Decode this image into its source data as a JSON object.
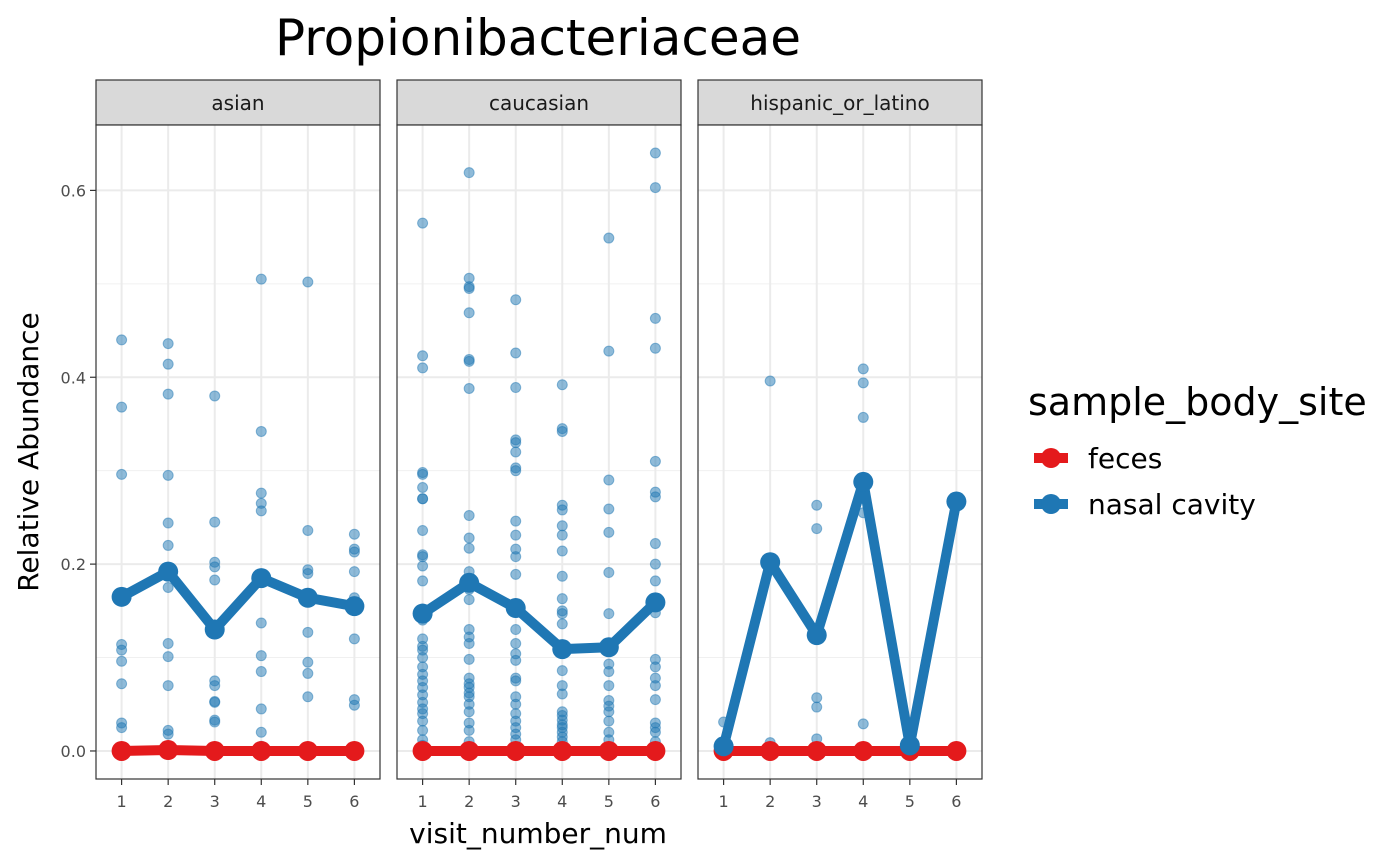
{
  "chart_data": {
    "type": "line",
    "title": "Propionibacteriaceae",
    "xlabel": "visit_number_num",
    "ylabel": "Relative Abundance",
    "x_ticks": [
      1,
      2,
      3,
      4,
      5,
      6
    ],
    "y_ticks": [
      0.0,
      0.2,
      0.4,
      0.6
    ],
    "y_tick_labels": [
      "0.0",
      "0.2",
      "0.4",
      "0.6"
    ],
    "ylim": [
      -0.03,
      0.67
    ],
    "xlim": [
      0.45,
      6.55
    ],
    "grid": true,
    "legend": {
      "title": "sample_body_site",
      "position": "right",
      "entries": [
        {
          "label": "feces",
          "color": "#E41A1C"
        },
        {
          "label": "nasal cavity",
          "color": "#1F77B4"
        }
      ]
    },
    "facets": [
      {
        "label": "asian",
        "series": [
          {
            "name": "feces",
            "color": "#E41A1C",
            "values": [
              0.0,
              0.001,
              0.0,
              0.0,
              0.0,
              0.0
            ]
          },
          {
            "name": "nasal cavity",
            "color": "#1F77B4",
            "values": [
              0.165,
              0.192,
              0.13,
              0.185,
              0.164,
              0.155
            ]
          }
        ],
        "points": [
          [
            1,
            0.44
          ],
          [
            1,
            0.368
          ],
          [
            1,
            0.296
          ],
          [
            1,
            0.114
          ],
          [
            1,
            0.108
          ],
          [
            1,
            0.096
          ],
          [
            1,
            0.072
          ],
          [
            1,
            0.03
          ],
          [
            1,
            0.025
          ],
          [
            1,
            0.004
          ],
          [
            1,
            0.002
          ],
          [
            2,
            0.436
          ],
          [
            2,
            0.414
          ],
          [
            2,
            0.382
          ],
          [
            2,
            0.295
          ],
          [
            2,
            0.244
          ],
          [
            2,
            0.22
          ],
          [
            2,
            0.175
          ],
          [
            2,
            0.115
          ],
          [
            2,
            0.101
          ],
          [
            2,
            0.07
          ],
          [
            2,
            0.022
          ],
          [
            2,
            0.018
          ],
          [
            2,
            0.005
          ],
          [
            3,
            0.38
          ],
          [
            3,
            0.245
          ],
          [
            3,
            0.202
          ],
          [
            3,
            0.197
          ],
          [
            3,
            0.183
          ],
          [
            3,
            0.075
          ],
          [
            3,
            0.07
          ],
          [
            3,
            0.053
          ],
          [
            3,
            0.052
          ],
          [
            3,
            0.033
          ],
          [
            3,
            0.031
          ],
          [
            3,
            0.003
          ],
          [
            4,
            0.505
          ],
          [
            4,
            0.342
          ],
          [
            4,
            0.276
          ],
          [
            4,
            0.265
          ],
          [
            4,
            0.257
          ],
          [
            4,
            0.137
          ],
          [
            4,
            0.102
          ],
          [
            4,
            0.085
          ],
          [
            4,
            0.045
          ],
          [
            4,
            0.02
          ],
          [
            4,
            0.005
          ],
          [
            5,
            0.502
          ],
          [
            5,
            0.236
          ],
          [
            5,
            0.194
          ],
          [
            5,
            0.19
          ],
          [
            5,
            0.127
          ],
          [
            5,
            0.095
          ],
          [
            5,
            0.083
          ],
          [
            5,
            0.058
          ],
          [
            5,
            0.003
          ],
          [
            6,
            0.232
          ],
          [
            6,
            0.216
          ],
          [
            6,
            0.213
          ],
          [
            6,
            0.192
          ],
          [
            6,
            0.164
          ],
          [
            6,
            0.12
          ],
          [
            6,
            0.055
          ],
          [
            6,
            0.049
          ],
          [
            6,
            0.003
          ]
        ]
      },
      {
        "label": "caucasian",
        "series": [
          {
            "name": "feces",
            "color": "#E41A1C",
            "values": [
              0.0,
              0.0,
              0.0,
              0.0,
              0.0,
              0.0
            ]
          },
          {
            "name": "nasal cavity",
            "color": "#1F77B4",
            "values": [
              0.147,
              0.18,
              0.153,
              0.109,
              0.111,
              0.159
            ]
          }
        ],
        "points": [
          [
            1,
            0.565
          ],
          [
            1,
            0.423
          ],
          [
            1,
            0.41
          ],
          [
            1,
            0.298
          ],
          [
            1,
            0.296
          ],
          [
            1,
            0.282
          ],
          [
            1,
            0.27
          ],
          [
            1,
            0.27
          ],
          [
            1,
            0.236
          ],
          [
            1,
            0.21
          ],
          [
            1,
            0.208
          ],
          [
            1,
            0.198
          ],
          [
            1,
            0.182
          ],
          [
            1,
            0.152
          ],
          [
            1,
            0.14
          ],
          [
            1,
            0.12
          ],
          [
            1,
            0.112
          ],
          [
            1,
            0.108
          ],
          [
            1,
            0.1
          ],
          [
            1,
            0.09
          ],
          [
            1,
            0.082
          ],
          [
            1,
            0.075
          ],
          [
            1,
            0.068
          ],
          [
            1,
            0.06
          ],
          [
            1,
            0.052
          ],
          [
            1,
            0.045
          ],
          [
            1,
            0.04
          ],
          [
            1,
            0.032
          ],
          [
            1,
            0.022
          ],
          [
            1,
            0.012
          ],
          [
            1,
            0.006
          ],
          [
            2,
            0.619
          ],
          [
            2,
            0.506
          ],
          [
            2,
            0.497
          ],
          [
            2,
            0.495
          ],
          [
            2,
            0.469
          ],
          [
            2,
            0.419
          ],
          [
            2,
            0.417
          ],
          [
            2,
            0.388
          ],
          [
            2,
            0.252
          ],
          [
            2,
            0.228
          ],
          [
            2,
            0.217
          ],
          [
            2,
            0.192
          ],
          [
            2,
            0.173
          ],
          [
            2,
            0.162
          ],
          [
            2,
            0.13
          ],
          [
            2,
            0.122
          ],
          [
            2,
            0.115
          ],
          [
            2,
            0.098
          ],
          [
            2,
            0.078
          ],
          [
            2,
            0.072
          ],
          [
            2,
            0.068
          ],
          [
            2,
            0.062
          ],
          [
            2,
            0.058
          ],
          [
            2,
            0.05
          ],
          [
            2,
            0.042
          ],
          [
            2,
            0.03
          ],
          [
            2,
            0.022
          ],
          [
            2,
            0.01
          ],
          [
            3,
            0.483
          ],
          [
            3,
            0.426
          ],
          [
            3,
            0.389
          ],
          [
            3,
            0.333
          ],
          [
            3,
            0.33
          ],
          [
            3,
            0.32
          ],
          [
            3,
            0.303
          ],
          [
            3,
            0.3
          ],
          [
            3,
            0.246
          ],
          [
            3,
            0.231
          ],
          [
            3,
            0.216
          ],
          [
            3,
            0.208
          ],
          [
            3,
            0.189
          ],
          [
            3,
            0.13
          ],
          [
            3,
            0.115
          ],
          [
            3,
            0.104
          ],
          [
            3,
            0.097
          ],
          [
            3,
            0.078
          ],
          [
            3,
            0.075
          ],
          [
            3,
            0.058
          ],
          [
            3,
            0.05
          ],
          [
            3,
            0.04
          ],
          [
            3,
            0.032
          ],
          [
            3,
            0.025
          ],
          [
            3,
            0.018
          ],
          [
            3,
            0.012
          ],
          [
            4,
            0.392
          ],
          [
            4,
            0.345
          ],
          [
            4,
            0.342
          ],
          [
            4,
            0.263
          ],
          [
            4,
            0.258
          ],
          [
            4,
            0.241
          ],
          [
            4,
            0.231
          ],
          [
            4,
            0.214
          ],
          [
            4,
            0.187
          ],
          [
            4,
            0.163
          ],
          [
            4,
            0.15
          ],
          [
            4,
            0.147
          ],
          [
            4,
            0.136
          ],
          [
            4,
            0.086
          ],
          [
            4,
            0.07
          ],
          [
            4,
            0.061
          ],
          [
            4,
            0.042
          ],
          [
            4,
            0.038
          ],
          [
            4,
            0.033
          ],
          [
            4,
            0.028
          ],
          [
            4,
            0.025
          ],
          [
            4,
            0.02
          ],
          [
            4,
            0.015
          ],
          [
            4,
            0.01
          ],
          [
            5,
            0.549
          ],
          [
            5,
            0.428
          ],
          [
            5,
            0.29
          ],
          [
            5,
            0.259
          ],
          [
            5,
            0.234
          ],
          [
            5,
            0.191
          ],
          [
            5,
            0.147
          ],
          [
            5,
            0.093
          ],
          [
            5,
            0.085
          ],
          [
            5,
            0.07
          ],
          [
            5,
            0.054
          ],
          [
            5,
            0.048
          ],
          [
            5,
            0.042
          ],
          [
            5,
            0.032
          ],
          [
            5,
            0.02
          ],
          [
            5,
            0.012
          ],
          [
            6,
            0.64
          ],
          [
            6,
            0.603
          ],
          [
            6,
            0.463
          ],
          [
            6,
            0.431
          ],
          [
            6,
            0.31
          ],
          [
            6,
            0.277
          ],
          [
            6,
            0.272
          ],
          [
            6,
            0.222
          ],
          [
            6,
            0.2
          ],
          [
            6,
            0.182
          ],
          [
            6,
            0.148
          ],
          [
            6,
            0.098
          ],
          [
            6,
            0.09
          ],
          [
            6,
            0.078
          ],
          [
            6,
            0.07
          ],
          [
            6,
            0.055
          ],
          [
            6,
            0.03
          ],
          [
            6,
            0.025
          ],
          [
            6,
            0.02
          ],
          [
            6,
            0.01
          ]
        ]
      },
      {
        "label": "hispanic_or_latino",
        "series": [
          {
            "name": "feces",
            "color": "#E41A1C",
            "values": [
              0.0,
              0.0,
              0.0,
              0.0,
              0.0,
              0.0
            ]
          },
          {
            "name": "nasal cavity",
            "color": "#1F77B4",
            "values": [
              0.005,
              0.202,
              0.124,
              0.288,
              0.006,
              0.267
            ]
          }
        ],
        "points": [
          [
            1,
            0.031
          ],
          [
            1,
            0.002
          ],
          [
            2,
            0.396
          ],
          [
            2,
            0.009
          ],
          [
            3,
            0.263
          ],
          [
            3,
            0.238
          ],
          [
            3,
            0.057
          ],
          [
            3,
            0.047
          ],
          [
            3,
            0.013
          ],
          [
            4,
            0.409
          ],
          [
            4,
            0.394
          ],
          [
            4,
            0.357
          ],
          [
            4,
            0.255
          ],
          [
            4,
            0.029
          ],
          [
            5,
            0.003
          ],
          [
            6,
            0.002
          ]
        ]
      }
    ]
  }
}
